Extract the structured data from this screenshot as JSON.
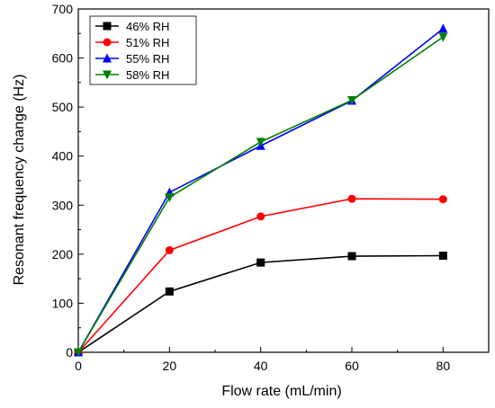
{
  "chart_data": {
    "type": "line",
    "title": "",
    "xlabel": "Flow rate (mL/min)",
    "ylabel": "Resonant frequency change (Hz)",
    "xlim": [
      0,
      90
    ],
    "ylim": [
      0,
      700
    ],
    "x_ticks": [
      0,
      20,
      40,
      60,
      80
    ],
    "y_ticks": [
      0,
      100,
      200,
      300,
      400,
      500,
      600,
      700
    ],
    "grid": false,
    "legend_position": "top-left",
    "x": [
      0,
      20,
      40,
      60,
      80
    ],
    "series": [
      {
        "name": "46% RH",
        "color": "#000000",
        "marker": "square",
        "values": [
          0,
          124,
          183,
          196,
          197
        ]
      },
      {
        "name": "51% RH",
        "color": "#ff0000",
        "marker": "circle",
        "values": [
          0,
          208,
          277,
          313,
          312
        ]
      },
      {
        "name": "55% RH",
        "color": "#0000ff",
        "marker": "triangle-up",
        "values": [
          0,
          326,
          421,
          513,
          660
        ]
      },
      {
        "name": "58% RH",
        "color": "#008000",
        "marker": "triangle-down",
        "values": [
          0,
          316,
          429,
          514,
          643
        ]
      }
    ]
  }
}
